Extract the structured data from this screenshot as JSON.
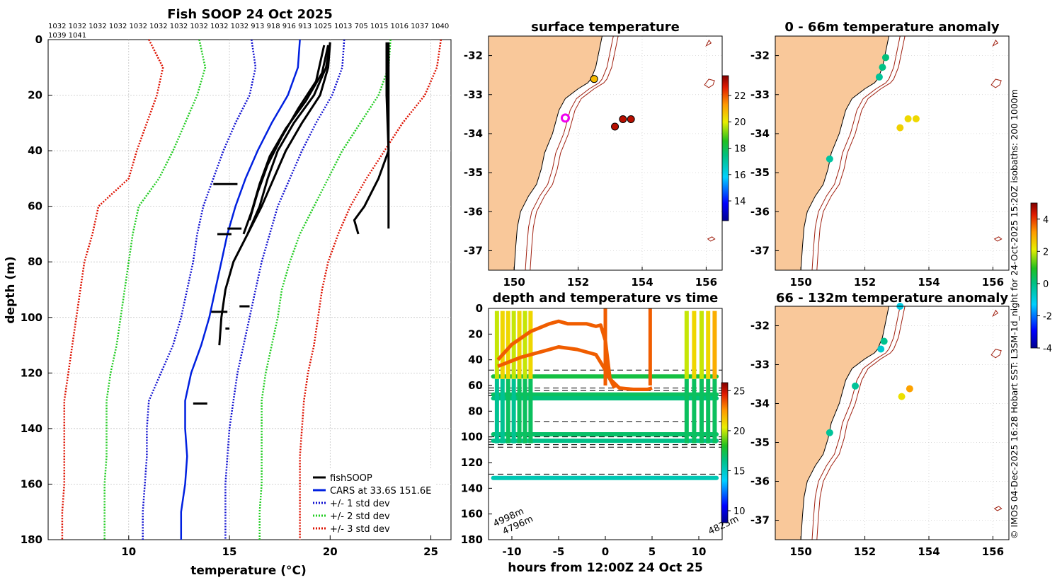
{
  "figure": {
    "credit": "© IMOS 04-Dec-2025 16:28 Hobart SST: L3SM-1d_night for 24-Oct-2025 15:20Z isobaths: 200  1000m"
  },
  "colors": {
    "land": "#f9c89a",
    "fish": "#000000",
    "cars": "#0020e0",
    "std1": "#1010d0",
    "std2": "#22cc22",
    "std3": "#dd1100",
    "isobath": "#a02010"
  },
  "chart_data": [
    {
      "type": "line",
      "title": "Fish SOOP 24 Oct 2025",
      "xlabel": "temperature (°C)",
      "ylabel": "depth (m)",
      "xlim": [
        6,
        26
      ],
      "ylim": [
        180,
        0
      ],
      "xticks": [
        10,
        15,
        20,
        25
      ],
      "yticks": [
        0,
        20,
        40,
        60,
        80,
        100,
        120,
        140,
        160,
        180
      ],
      "top_labels_row1": "1032 1032 1032 1032 1032 1032 1032 1032 1032 1032 913 918 916 913 1025 1013 705 1015 1016 1037 1040",
      "top_labels_row2": "1039 1041",
      "legend": [
        "fishSOOP",
        "CARS at 33.6S 151.6E",
        "+/- 1 std dev",
        "+/- 2 std dev",
        "+/- 3 std dev"
      ],
      "series": [
        {
          "name": "CARS",
          "depth": [
            0,
            10,
            20,
            30,
            40,
            50,
            60,
            70,
            80,
            90,
            100,
            110,
            120,
            130,
            140,
            150,
            160,
            170,
            180
          ],
          "temp": [
            18.5,
            18.4,
            17.9,
            17.1,
            16.4,
            15.8,
            15.3,
            14.9,
            14.6,
            14.3,
            14.0,
            13.6,
            13.1,
            12.8,
            12.8,
            12.9,
            12.8,
            12.6,
            12.6
          ]
        },
        {
          "name": "+1 std",
          "depth": [
            0,
            10,
            20,
            30,
            40,
            50,
            60,
            70,
            80,
            90,
            100,
            110,
            120,
            130,
            140,
            150,
            160,
            170,
            180
          ],
          "temp": [
            16.1,
            16.3,
            16.0,
            15.3,
            14.7,
            14.2,
            13.7,
            13.4,
            13.2,
            12.9,
            12.6,
            12.2,
            11.6,
            11.0,
            10.9,
            10.9,
            10.8,
            10.7,
            10.7
          ]
        },
        {
          "name": "-1 std",
          "depth": [
            0,
            10,
            20,
            30,
            40,
            50,
            60,
            70,
            80,
            90,
            100,
            110,
            120,
            130,
            140,
            150,
            160,
            170,
            180
          ],
          "temp": [
            20.7,
            20.6,
            20.1,
            19.3,
            18.6,
            18.0,
            17.4,
            17.0,
            16.6,
            16.3,
            16.0,
            15.7,
            15.4,
            15.2,
            15.0,
            14.9,
            14.8,
            14.8,
            14.8
          ]
        },
        {
          "name": "+2 std",
          "depth": [
            0,
            10,
            20,
            30,
            40,
            50,
            60,
            70,
            80,
            90,
            100,
            110,
            120,
            130,
            140,
            150,
            160,
            170,
            180
          ],
          "temp": [
            13.5,
            13.8,
            13.4,
            12.8,
            12.2,
            11.5,
            10.5,
            10.2,
            10.0,
            9.8,
            9.6,
            9.4,
            9.1,
            8.9,
            8.9,
            8.9,
            8.8,
            8.8,
            8.8
          ]
        },
        {
          "name": "-2 std",
          "depth": [
            0,
            10,
            20,
            30,
            40,
            50,
            60,
            70,
            80,
            90,
            100,
            110,
            120,
            130,
            140,
            150,
            160,
            170,
            180
          ],
          "temp": [
            23.0,
            22.9,
            22.4,
            21.5,
            20.6,
            19.9,
            19.2,
            18.5,
            18.0,
            17.6,
            17.4,
            17.1,
            16.8,
            16.6,
            16.6,
            16.6,
            16.6,
            16.5,
            16.5
          ]
        },
        {
          "name": "+3 std",
          "depth": [
            0,
            10,
            20,
            30,
            40,
            50,
            60,
            70,
            80,
            90,
            100,
            110,
            120,
            130,
            140,
            150,
            160,
            170,
            180
          ],
          "temp": [
            11.0,
            11.7,
            11.4,
            10.9,
            10.4,
            10.0,
            8.5,
            8.2,
            7.8,
            7.6,
            7.4,
            7.2,
            7.0,
            6.8,
            6.8,
            6.8,
            6.8,
            6.7,
            6.7
          ]
        },
        {
          "name": "-3 std",
          "depth": [
            0,
            10,
            20,
            30,
            40,
            50,
            60,
            70,
            80,
            90,
            100,
            110,
            120,
            130,
            140,
            150,
            160,
            170,
            180
          ],
          "temp": [
            25.5,
            25.3,
            24.7,
            23.6,
            22.7,
            21.8,
            21.0,
            20.4,
            19.9,
            19.6,
            19.4,
            19.2,
            18.9,
            18.7,
            18.6,
            18.5,
            18.5,
            18.5,
            18.5
          ]
        },
        {
          "name": "fishSOOP A",
          "depth": [
            1,
            10,
            20,
            30,
            40,
            50,
            60,
            70,
            80,
            90,
            100,
            110
          ],
          "temp": [
            20.0,
            19.9,
            19.5,
            18.6,
            17.8,
            17.2,
            16.6,
            15.9,
            15.2,
            14.8,
            14.6,
            14.5
          ]
        },
        {
          "name": "fishSOOP B",
          "depth": [
            1,
            10,
            20,
            30,
            40,
            50,
            60,
            70
          ],
          "temp": [
            20.0,
            19.8,
            19.2,
            18.2,
            17.4,
            16.9,
            16.5,
            15.9
          ]
        },
        {
          "name": "fishSOOP C",
          "depth": [
            2,
            12,
            22,
            32,
            42,
            52,
            62,
            70
          ],
          "temp": [
            19.9,
            19.6,
            18.8,
            17.8,
            17.0,
            16.5,
            16.1,
            15.7
          ]
        },
        {
          "name": "fishSOOP D",
          "depth": [
            2,
            15,
            25,
            35,
            45,
            55,
            65
          ],
          "temp": [
            19.7,
            19.3,
            18.4,
            17.6,
            16.9,
            16.4,
            16.0
          ]
        },
        {
          "name": "fishSOOP E",
          "depth": [
            1,
            20,
            40,
            50,
            60,
            65,
            70
          ],
          "temp": [
            22.8,
            22.8,
            22.9,
            22.4,
            21.7,
            21.2,
            21.4
          ]
        },
        {
          "name": "fishSOOP F",
          "depth": [
            1,
            20,
            40,
            55,
            63,
            68
          ],
          "temp": [
            22.9,
            22.9,
            22.9,
            22.9,
            22.9,
            22.9
          ]
        }
      ]
    },
    {
      "type": "scatter",
      "title": "surface temperature",
      "xlim": [
        149.2,
        156.5
      ],
      "ylim": [
        -37.5,
        -31.5
      ],
      "xticks": [
        150,
        152,
        154,
        156
      ],
      "yticks": [
        -32,
        -33,
        -34,
        -35,
        -36,
        -37
      ],
      "colorbar": {
        "range": [
          12.5,
          23.5
        ],
        "ticks": [
          14,
          16,
          18,
          20,
          22
        ]
      },
      "points": [
        {
          "lon": 152.5,
          "lat": -32.6,
          "value": 20.8
        },
        {
          "lon": 153.4,
          "lat": -33.63,
          "value": 23.0
        },
        {
          "lon": 153.65,
          "lat": -33.63,
          "value": 23.0
        },
        {
          "lon": 153.15,
          "lat": -33.82,
          "value": 23.0
        }
      ],
      "marker": {
        "lon": 151.6,
        "lat": -33.6
      }
    },
    {
      "type": "scatter",
      "title": "0 - 66m temperature anomaly",
      "xlim": [
        149.2,
        156.5
      ],
      "ylim": [
        -37.5,
        -31.5
      ],
      "xticks": [
        150,
        152,
        154,
        156
      ],
      "yticks": [
        -32,
        -33,
        -34,
        -35,
        -36,
        -37
      ],
      "points": [
        {
          "lon": 152.65,
          "lat": -32.05,
          "value": 0.1
        },
        {
          "lon": 152.55,
          "lat": -32.3,
          "value": 0.0
        },
        {
          "lon": 152.45,
          "lat": -32.55,
          "value": -0.2
        },
        {
          "lon": 153.1,
          "lat": -33.85,
          "value": 2.5
        },
        {
          "lon": 153.35,
          "lat": -33.62,
          "value": 2.4
        },
        {
          "lon": 153.6,
          "lat": -33.62,
          "value": 2.4
        },
        {
          "lon": 150.9,
          "lat": -34.65,
          "value": -0.3
        }
      ]
    },
    {
      "type": "scatter",
      "title": "66 - 132m temperature anomaly",
      "xlim": [
        149.2,
        156.5
      ],
      "ylim": [
        -37.5,
        -31.5
      ],
      "xticks": [
        150,
        152,
        154,
        156
      ],
      "yticks": [
        -32,
        -33,
        -34,
        -35,
        -36,
        -37
      ],
      "colorbar": {
        "range": [
          -4,
          5
        ],
        "ticks": [
          -4,
          -2,
          0,
          2,
          4
        ]
      },
      "points": [
        {
          "lon": 153.1,
          "lat": -31.5,
          "value": -1.0
        },
        {
          "lon": 152.6,
          "lat": -32.4,
          "value": -0.1
        },
        {
          "lon": 152.5,
          "lat": -32.6,
          "value": -0.8
        },
        {
          "lon": 151.7,
          "lat": -33.55,
          "value": -0.2
        },
        {
          "lon": 153.15,
          "lat": -33.82,
          "value": 2.3
        },
        {
          "lon": 153.4,
          "lat": -33.62,
          "value": 3.1
        },
        {
          "lon": 150.9,
          "lat": -34.75,
          "value": -0.2
        }
      ]
    },
    {
      "type": "scatter",
      "title": "depth and temperature vs time",
      "xlabel": "hours from 12:00Z 24 Oct 25",
      "xlim": [
        -12.5,
        12.5
      ],
      "ylim": [
        180,
        0
      ],
      "xticks": [
        -10,
        -5,
        0,
        5,
        10
      ],
      "yticks": [
        0,
        20,
        40,
        60,
        80,
        100,
        120,
        140,
        160,
        180
      ],
      "colorbar": {
        "range": [
          8.5,
          26
        ],
        "ticks": [
          10,
          15,
          20,
          25
        ]
      },
      "annotations": [
        "4998m",
        "4796m",
        "4823m"
      ],
      "dashed_depths": [
        48,
        62,
        64,
        66,
        68,
        88,
        100,
        102,
        104,
        106,
        108,
        129
      ],
      "bands": [
        {
          "depth": 53,
          "value": 17.5
        },
        {
          "depth": 67,
          "value": 17.0
        },
        {
          "depth": 70,
          "value": 16.5
        },
        {
          "depth": 98,
          "value": 16.8
        },
        {
          "depth": 103,
          "value": 16.2
        },
        {
          "depth": 132,
          "value": 15.3
        }
      ],
      "orange_track": {
        "hours": [
          -11.5,
          -10,
          -8,
          -6,
          -5,
          -4,
          -2,
          -1,
          -0.5,
          0,
          0.5,
          1.5,
          3,
          4.5,
          5
        ],
        "depth": [
          40,
          28,
          18,
          12,
          10,
          12,
          12,
          14,
          13,
          25,
          55,
          62,
          63,
          63,
          62
        ],
        "value": 23.5
      },
      "orange_track2": {
        "hours": [
          -11.5,
          -9,
          -7,
          -5,
          -3,
          -1,
          0,
          1
        ],
        "depth": [
          45,
          38,
          34,
          30,
          32,
          36,
          48,
          62
        ],
        "value": 23.5
      },
      "casts": [
        {
          "hour": -11.6,
          "vmin": 20,
          "vmax": 16
        },
        {
          "hour": -11.0,
          "vmin": 21,
          "vmax": 16
        },
        {
          "hour": -10.4,
          "vmin": 21,
          "vmax": 17
        },
        {
          "hour": -9.8,
          "vmin": 20,
          "vmax": 16
        },
        {
          "hour": -9.2,
          "vmin": 21,
          "vmax": 17
        },
        {
          "hour": -8.6,
          "vmin": 20,
          "vmax": 17
        },
        {
          "hour": -8.0,
          "vmin": 21,
          "vmax": 17
        },
        {
          "hour": 8.7,
          "vmin": 20,
          "vmax": 17
        },
        {
          "hour": 9.5,
          "vmin": 21,
          "vmax": 17
        },
        {
          "hour": 10.3,
          "vmin": 20,
          "vmax": 17
        },
        {
          "hour": 11.0,
          "vmin": 21,
          "vmax": 17
        },
        {
          "hour": 11.7,
          "vmin": 22,
          "vmax": 17
        }
      ]
    }
  ]
}
